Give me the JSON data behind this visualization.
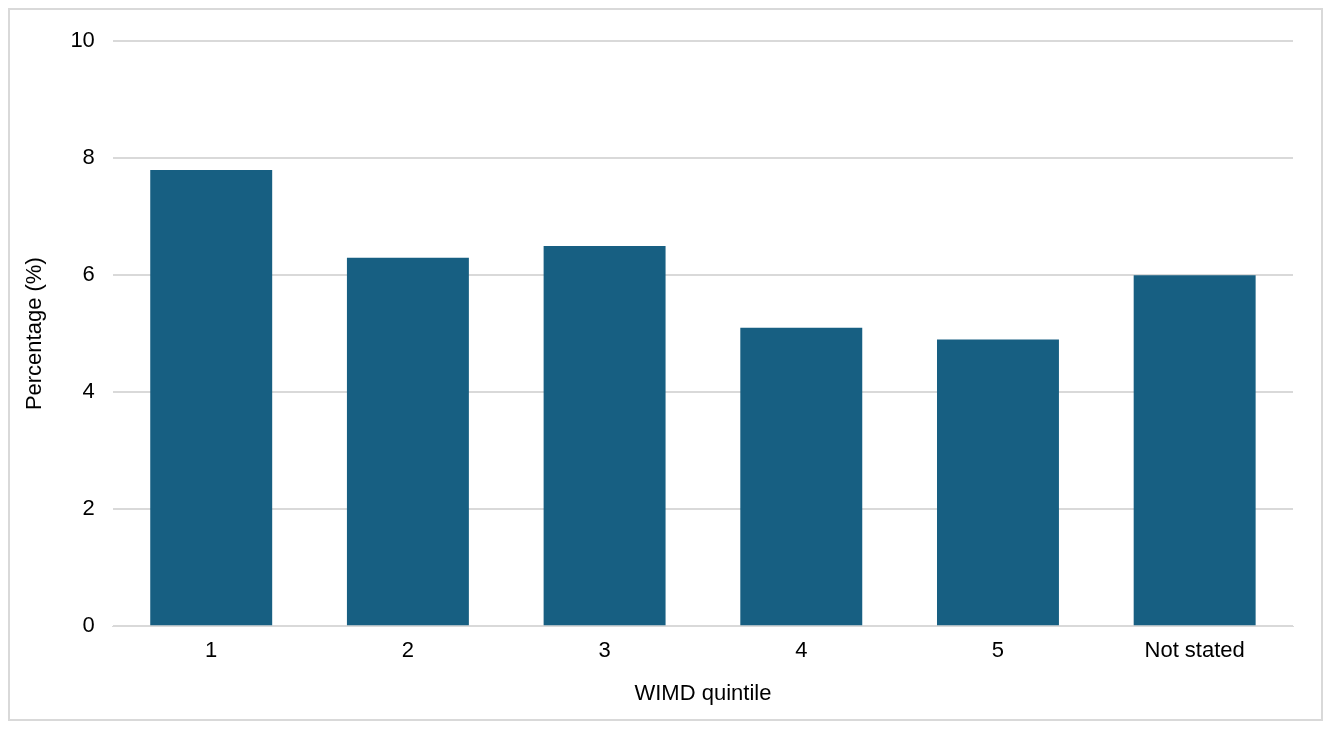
{
  "chart_data": {
    "type": "bar",
    "xlabel": "WIMD quintile",
    "ylabel": "Percentage (%)",
    "categories": [
      "1",
      "2",
      "3",
      "4",
      "5",
      "Not stated"
    ],
    "values": [
      7.8,
      6.3,
      6.5,
      5.1,
      4.9,
      6.0
    ],
    "color": "#175f82",
    "ylim": [
      0,
      10
    ],
    "yticks": [
      0,
      2,
      4,
      6,
      8,
      10
    ],
    "grid": "y",
    "legend": false
  }
}
